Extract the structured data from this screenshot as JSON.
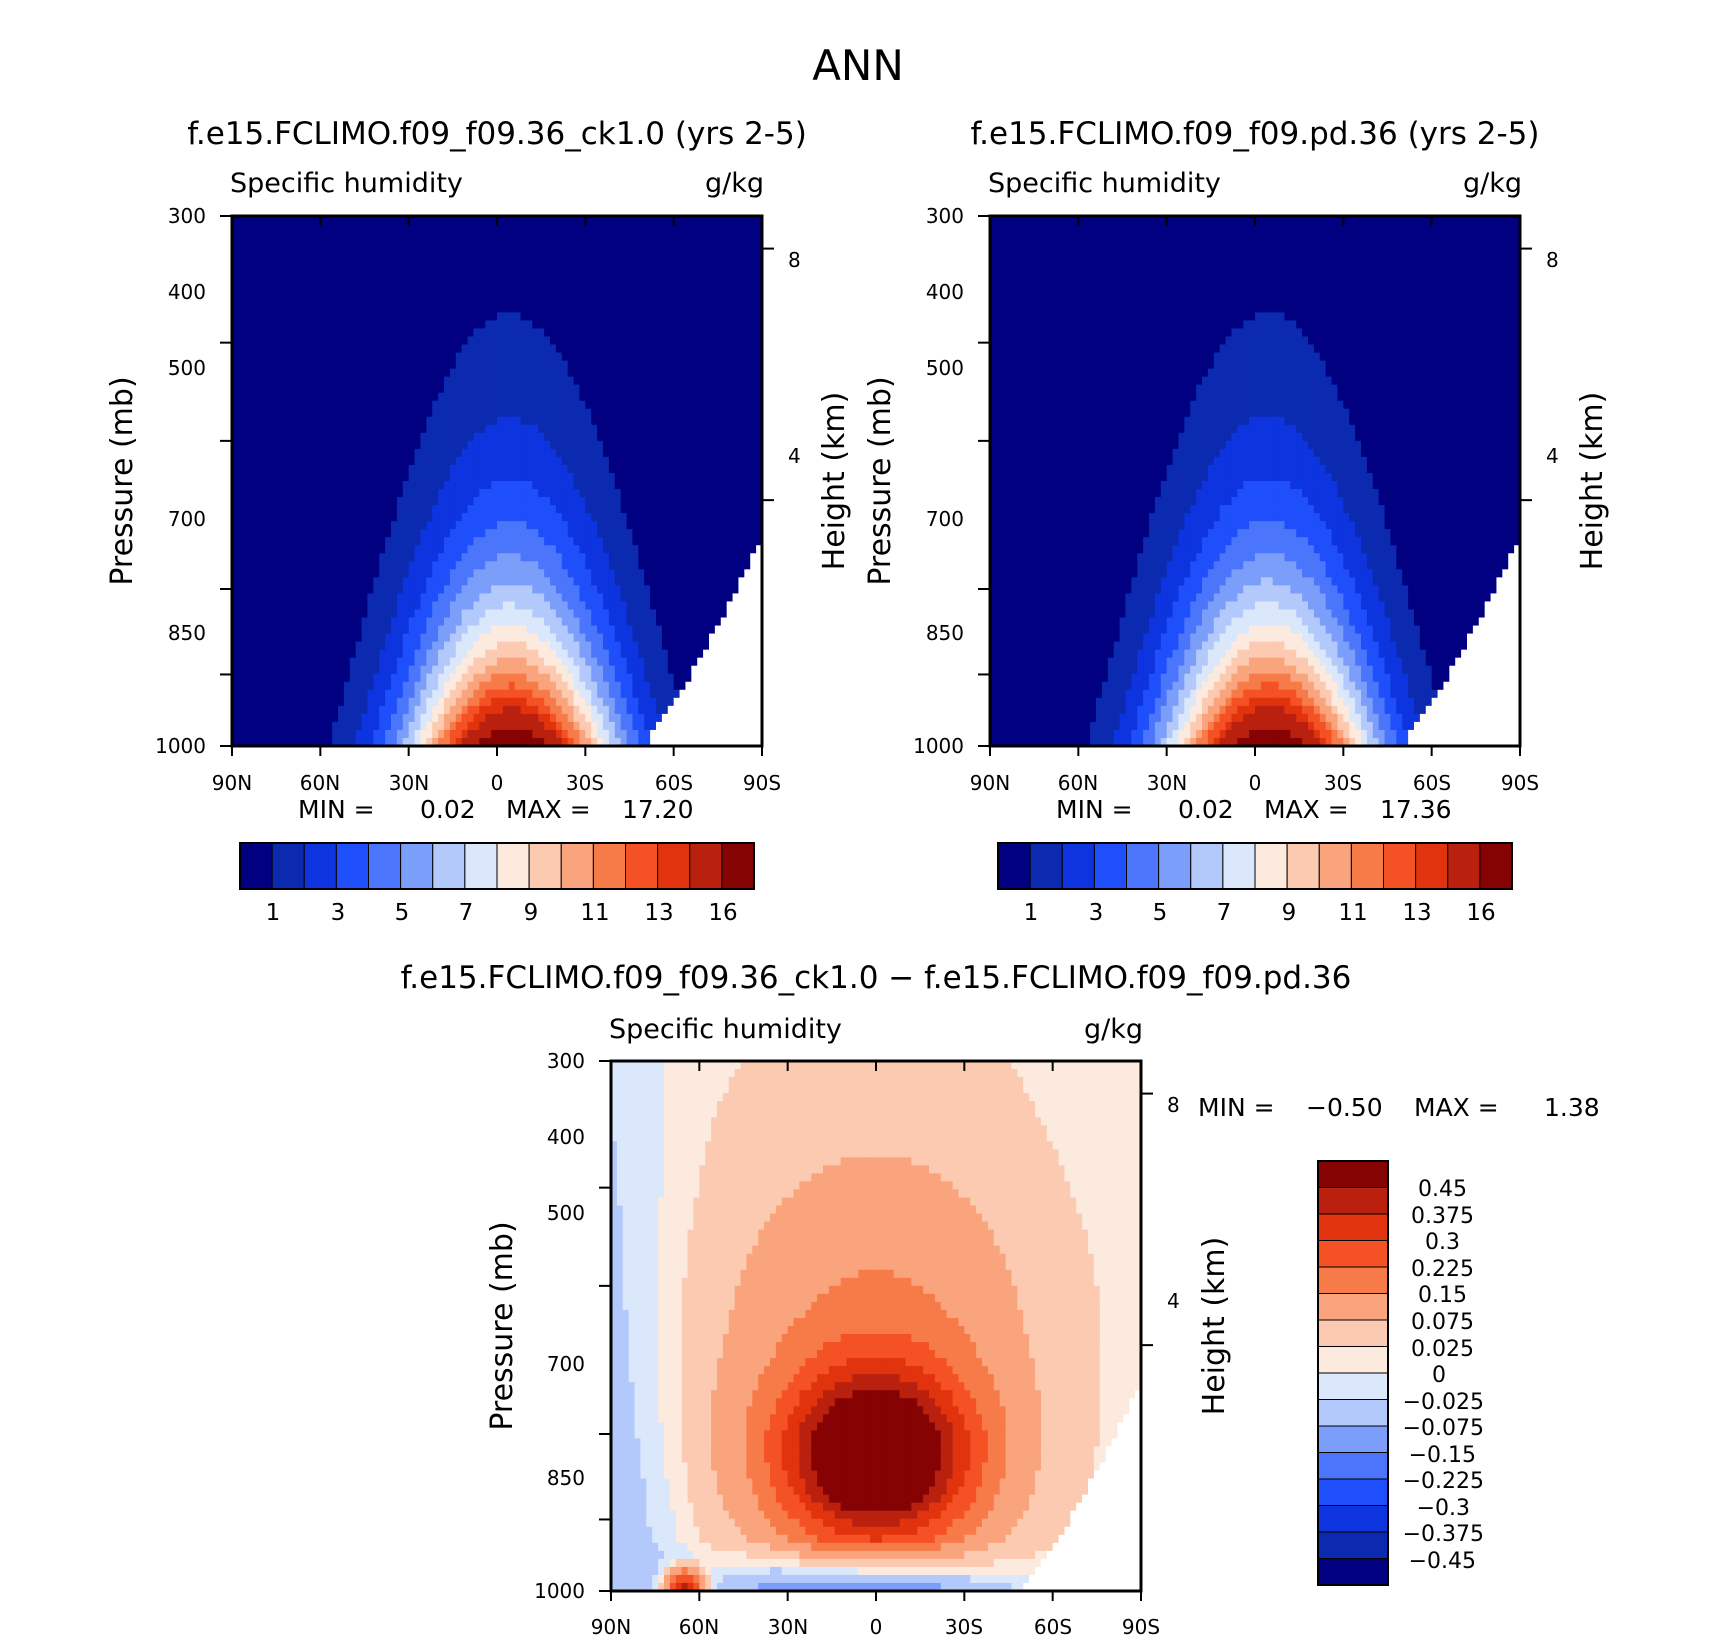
{
  "main_title": "ANN",
  "colors": {
    "abs": [
      "#000080",
      "#0b2ab0",
      "#0d34de",
      "#1f4ffb",
      "#4b76fb",
      "#7c9efb",
      "#b4c9fb",
      "#dbe8fb",
      "#fdeade",
      "#fccab0",
      "#f9a47c",
      "#f77a49",
      "#f45125",
      "#e1330e",
      "#b9210e",
      "#860303"
    ],
    "diff_pos": [
      "#fdeade",
      "#fccab0",
      "#f9a47c",
      "#f77a49",
      "#f45125",
      "#e1330e",
      "#b9210e",
      "#860303"
    ],
    "diff_neg": [
      "#dbe8fb",
      "#b4c9fb",
      "#7c9efb",
      "#4b76fb",
      "#1f4ffb",
      "#0d34de",
      "#0b2ab0",
      "#000080"
    ]
  },
  "chart_data": [
    {
      "type": "contour",
      "title": "f.e15.FCLIMO.f09_f09.36_ck1.0 (yrs 2-5)",
      "subtitle_left": "Specific humidity",
      "subtitle_right": "g/kg",
      "ylabel": "Pressure (mb)",
      "ylabel_right": "Height (km)",
      "x_ticks": [
        "90N",
        "60N",
        "30N",
        "0",
        "30S",
        "60S",
        "90S"
      ],
      "y_ticks": [
        "300",
        "400",
        "500",
        "700",
        "850",
        "1000"
      ],
      "y_ticks_right": [
        "8",
        "4"
      ],
      "min_label": "MIN =",
      "min_value": "0.02",
      "max_label": "MAX =",
      "max_value": "17.20",
      "colorbar_labels": [
        "1",
        "3",
        "5",
        "7",
        "9",
        "11",
        "13",
        "16"
      ],
      "peak_lat": -5,
      "max": 17.2
    },
    {
      "type": "contour",
      "title": "f.e15.FCLIMO.f09_f09.pd.36 (yrs 2-5)",
      "subtitle_left": "Specific humidity",
      "subtitle_right": "g/kg",
      "ylabel": "Pressure (mb)",
      "ylabel_right": "Height (km)",
      "x_ticks": [
        "90N",
        "60N",
        "30N",
        "0",
        "30S",
        "60S",
        "90S"
      ],
      "y_ticks": [
        "300",
        "400",
        "500",
        "700",
        "850",
        "1000"
      ],
      "y_ticks_right": [
        "8",
        "4"
      ],
      "min_label": "MIN =",
      "min_value": "0.02",
      "max_label": "MAX =",
      "max_value": "17.36",
      "colorbar_labels": [
        "1",
        "3",
        "5",
        "7",
        "9",
        "11",
        "13",
        "16"
      ],
      "peak_lat": -5,
      "max": 17.36
    },
    {
      "type": "contour",
      "title": "f.e15.FCLIMO.f09_f09.36_ck1.0 − f.e15.FCLIMO.f09_f09.pd.36",
      "subtitle_left": "Specific humidity",
      "subtitle_right": "g/kg",
      "ylabel": "Pressure (mb)",
      "ylabel_right": "Height (km)",
      "x_ticks": [
        "90N",
        "60N",
        "30N",
        "0",
        "30S",
        "60S",
        "90S"
      ],
      "y_ticks": [
        "300",
        "400",
        "500",
        "700",
        "850",
        "1000"
      ],
      "y_ticks_right": [
        "8",
        "4"
      ],
      "min_label": "MIN =",
      "min_value": "−0.50",
      "max_label": "MAX =",
      "max_value": "1.38",
      "colorbar_labels": [
        "0.45",
        "0.375",
        "0.3",
        "0.225",
        "0.15",
        "0.075",
        "0.025",
        "0",
        "−0.025",
        "−0.075",
        "−0.15",
        "−0.225",
        "−0.3",
        "−0.375",
        "−0.45"
      ],
      "levels": [
        0,
        0.025,
        0.075,
        0.15,
        0.225,
        0.3,
        0.375,
        0.45
      ]
    }
  ]
}
